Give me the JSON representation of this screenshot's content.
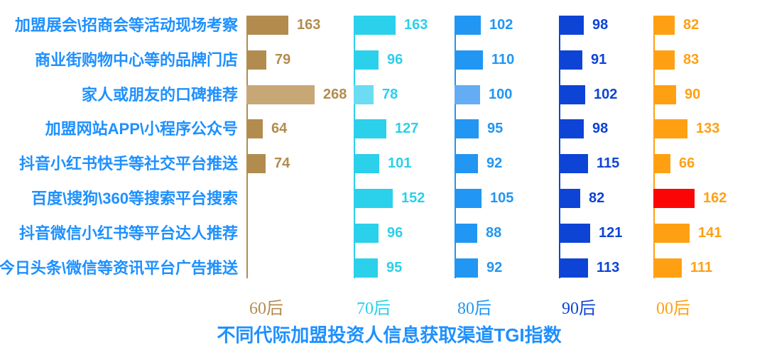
{
  "page": {
    "title_label": "不同代际加盟投资人信息获取渠道TGI指数",
    "title_color": "#1E90FF",
    "row_label_color": "#1E90FF",
    "background_color": "#FFFFFF"
  },
  "chart_data": {
    "type": "bar",
    "orientation": "horizontal",
    "layout": "5 generation columns, each with its own vertical baseline; 8 shared category rows; value labels to the right of each bar",
    "title": "不同代际加盟投资人信息获取渠道TGI指数",
    "xlabel": "",
    "ylabel": "",
    "grid": false,
    "legend_position": "bottom (colored generation labels under each column)",
    "categories": [
      "加盟展会\\招商会等活动现场考察",
      "商业街购物中心等的品牌门店",
      "家人或朋友的口碑推荐",
      "加盟网站APP\\小程序公众号",
      "抖音小红书快手等社交平台推送",
      "百度\\搜狗\\360等搜索平台搜索",
      "抖音微信小红书等平台达人推荐",
      "今日头条\\微信等资讯平台广告推送"
    ],
    "series": [
      {
        "name": "60后",
        "color": "#B28C4E",
        "light_color": "#C8A777",
        "values": [
          163,
          79,
          268,
          64,
          74,
          null,
          null,
          null
        ]
      },
      {
        "name": "70后",
        "color": "#2BD0EA",
        "light_color": "#6BDCF2",
        "values": [
          163,
          96,
          78,
          127,
          101,
          152,
          96,
          95
        ]
      },
      {
        "name": "80后",
        "color": "#2196F3",
        "light_color": "#64ACF4",
        "values": [
          102,
          110,
          100,
          95,
          92,
          105,
          88,
          92
        ]
      },
      {
        "name": "90后",
        "color": "#0D44D6",
        "light_color": "#0D44D6",
        "values": [
          98,
          91,
          102,
          98,
          115,
          82,
          121,
          113
        ]
      },
      {
        "name": "00后",
        "color": "#FFA013",
        "light_color": "#FFA013",
        "values": [
          82,
          83,
          90,
          133,
          66,
          162,
          141,
          111
        ]
      }
    ],
    "light_highlight_cells": [
      {
        "series": 0,
        "row": 2
      },
      {
        "series": 1,
        "row": 2
      },
      {
        "series": 2,
        "row": 2
      }
    ],
    "color_override_cells": [
      {
        "series": 4,
        "row": 5,
        "color": "#FB0606"
      }
    ],
    "value_range_note": "TGI index values, min 64, max 268"
  }
}
